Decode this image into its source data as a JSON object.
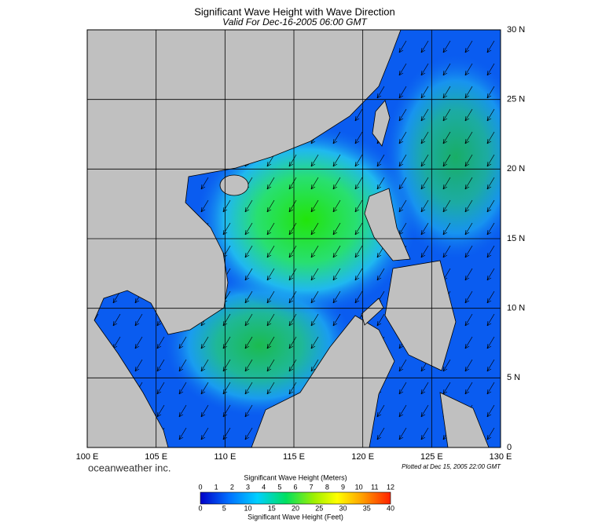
{
  "title": "Significant Wave Height with Wave Direction",
  "subtitle": "Valid For Dec-16-2005 06:00 GMT",
  "lat_labels": [
    "0",
    "5 N",
    "10 N",
    "15 N",
    "20 N",
    "25 N",
    "30 N"
  ],
  "lon_labels": [
    "100 E",
    "105 E",
    "110 E",
    "115 E",
    "120 E",
    "125 E",
    "130 E"
  ],
  "brand": "oceanweather inc.",
  "plotted": "Plotted at Dec 15, 2005 22:00 GMT",
  "colorbar": {
    "meters_title": "Significant Wave Height (Meters)",
    "meters_ticks": [
      0,
      1,
      2,
      3,
      4,
      5,
      6,
      7,
      8,
      9,
      10,
      11,
      12
    ],
    "feet_ticks": [
      0,
      5,
      10,
      15,
      20,
      25,
      30,
      35,
      40
    ],
    "feet_title": "Significant Wave Height (Feet)"
  }
}
